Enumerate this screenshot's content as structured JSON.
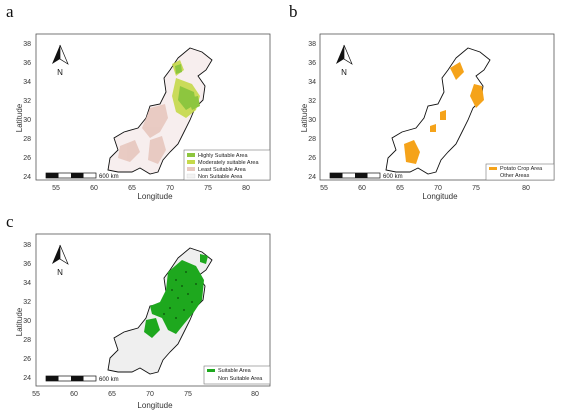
{
  "panels": {
    "a": {
      "letter": "a",
      "ylabel": "Latitude",
      "xlabel": "Longitude",
      "yticks": [
        "24",
        "26",
        "28",
        "30",
        "32",
        "34",
        "36",
        "38"
      ],
      "xticks": [
        "55",
        "60",
        "65",
        "70",
        "75",
        "80"
      ],
      "north": "N",
      "scale": "600 km",
      "legend": [
        {
          "label": "Highly Suitable Area",
          "color": "#8dc63f"
        },
        {
          "label": "Moderately suitable Area",
          "color": "#c6d94a"
        },
        {
          "label": "Least Suitable Area",
          "color": "#e8c9c0"
        },
        {
          "label": "Non Suitable Area",
          "color": "#f3f3f3"
        }
      ]
    },
    "b": {
      "letter": "b",
      "ylabel": "Latitude",
      "xlabel": "Longitude",
      "yticks": [
        "24",
        "26",
        "28",
        "30",
        "32",
        "34",
        "36",
        "38"
      ],
      "xticks": [
        "55",
        "60",
        "65",
        "70",
        "75",
        "80"
      ],
      "north": "N",
      "scale": "600 km",
      "legend": [
        {
          "label": "Potato Crop Area",
          "color": "#f5a31a"
        },
        {
          "label": "Other Areas",
          "color": "#ffffff"
        }
      ]
    },
    "c": {
      "letter": "c",
      "ylabel": "Latitude",
      "xlabel": "Longitude",
      "yticks": [
        "24",
        "26",
        "28",
        "30",
        "32",
        "34",
        "36",
        "38"
      ],
      "xticks": [
        "55",
        "60",
        "65",
        "70",
        "75",
        "80"
      ],
      "north": "N",
      "scale": "600 km",
      "legend": [
        {
          "label": "Suitable Area",
          "color": "#1ea81e"
        },
        {
          "label": "Non Suitable Area",
          "color": "#ededed"
        }
      ]
    }
  }
}
